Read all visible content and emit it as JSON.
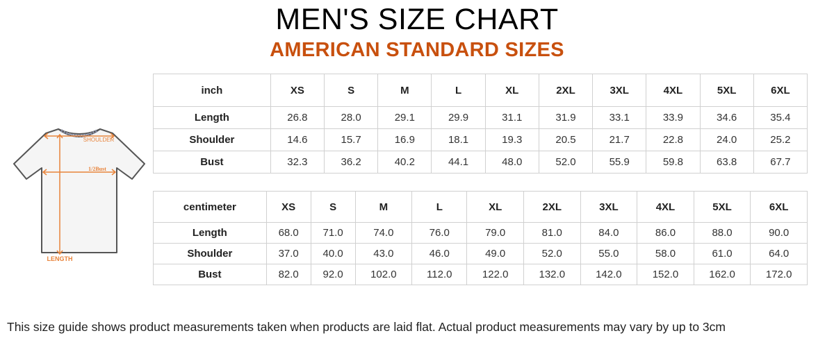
{
  "header": {
    "title": "MEN'S SIZE CHART",
    "subtitle": "AMERICAN STANDARD SIZES"
  },
  "diagram": {
    "labels": {
      "shoulder": "SHOULDER",
      "bust": "1/2Bust",
      "length": "LENGTH"
    },
    "accent_color": "#e8833a"
  },
  "inch_table": {
    "unit": "inch",
    "sizes": [
      "XS",
      "S",
      "M",
      "L",
      "XL",
      "2XL",
      "3XL",
      "4XL",
      "5XL",
      "6XL"
    ],
    "rows": [
      {
        "label": "Length",
        "values": [
          "26.8",
          "28.0",
          "29.1",
          "29.9",
          "31.1",
          "31.9",
          "33.1",
          "33.9",
          "34.6",
          "35.4"
        ]
      },
      {
        "label": "Shoulder",
        "values": [
          "14.6",
          "15.7",
          "16.9",
          "18.1",
          "19.3",
          "20.5",
          "21.7",
          "22.8",
          "24.0",
          "25.2"
        ]
      },
      {
        "label": "Bust",
        "values": [
          "32.3",
          "36.2",
          "40.2",
          "44.1",
          "48.0",
          "52.0",
          "55.9",
          "59.8",
          "63.8",
          "67.7"
        ]
      }
    ]
  },
  "cm_table": {
    "unit": "centimeter",
    "sizes": [
      "XS",
      "S",
      "M",
      "L",
      "XL",
      "2XL",
      "3XL",
      "4XL",
      "5XL",
      "6XL"
    ],
    "rows": [
      {
        "label": "Length",
        "values": [
          "68.0",
          "71.0",
          "74.0",
          "76.0",
          "79.0",
          "81.0",
          "84.0",
          "86.0",
          "88.0",
          "90.0"
        ]
      },
      {
        "label": "Shoulder",
        "values": [
          "37.0",
          "40.0",
          "43.0",
          "46.0",
          "49.0",
          "52.0",
          "55.0",
          "58.0",
          "61.0",
          "64.0"
        ]
      },
      {
        "label": "Bust",
        "values": [
          "82.0",
          "92.0",
          "102.0",
          "112.0",
          "122.0",
          "132.0",
          "142.0",
          "152.0",
          "162.0",
          "172.0"
        ]
      }
    ]
  },
  "footer": {
    "note": "This size guide shows product measurements taken when products are laid flat. Actual product measurements may vary by up to 3cm"
  }
}
